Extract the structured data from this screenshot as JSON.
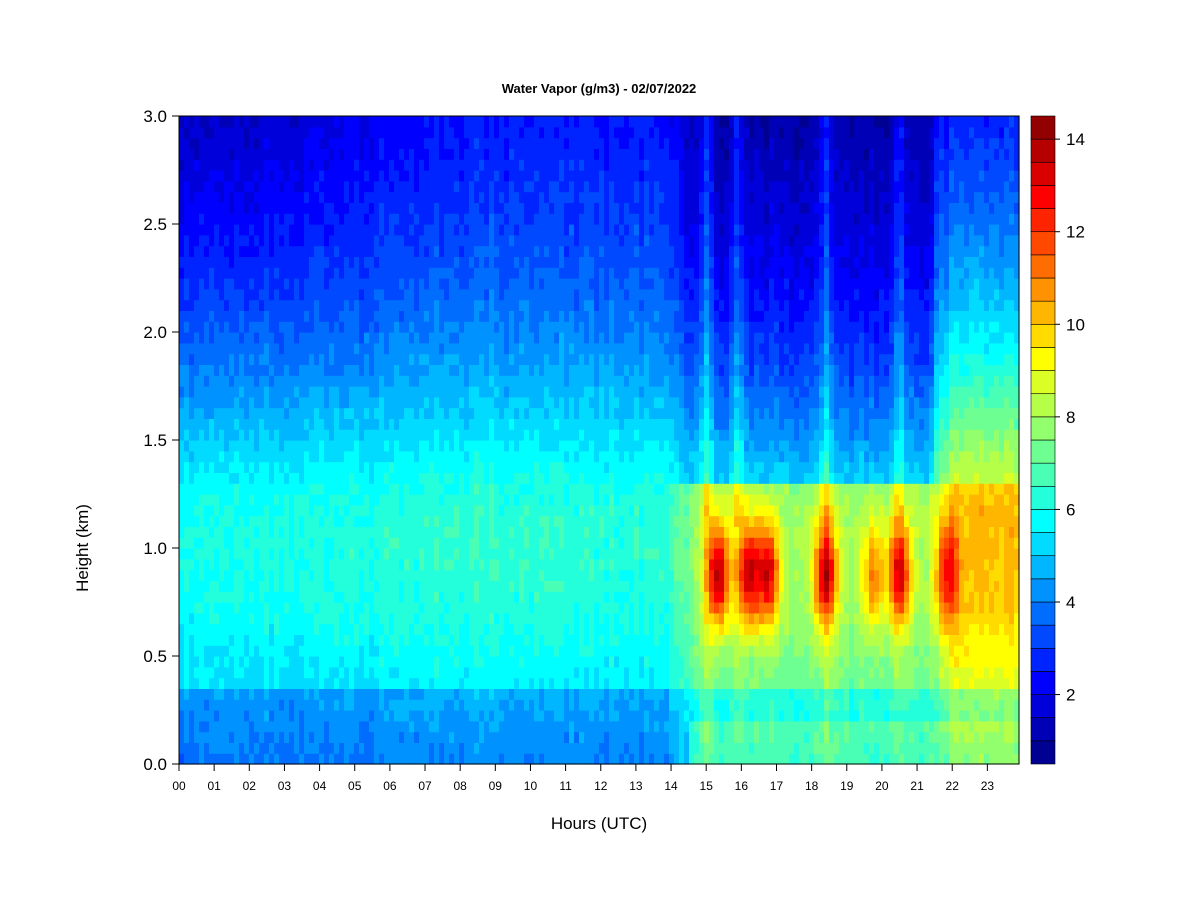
{
  "chart_data": {
    "type": "heatmap",
    "title": "Water Vapor (g/m3) - 02/07/2022",
    "xlabel": "Hours (UTC)",
    "ylabel": "Height (km)",
    "x_ticks": [
      "00",
      "01",
      "02",
      "03",
      "04",
      "05",
      "06",
      "07",
      "08",
      "09",
      "10",
      "11",
      "12",
      "13",
      "14",
      "15",
      "16",
      "17",
      "18",
      "19",
      "20",
      "21",
      "22",
      "23"
    ],
    "xlim": [
      0,
      23.9
    ],
    "y_ticks": [
      "0.0",
      "0.5",
      "1.0",
      "1.5",
      "2.0",
      "2.5",
      "3.0"
    ],
    "ylim": [
      0,
      3.0
    ],
    "colorbar": {
      "range": [
        0.5,
        14.5
      ],
      "ticks": [
        "2",
        "4",
        "6",
        "8",
        "10",
        "12",
        "14"
      ],
      "levels": 28,
      "colormap": "jet"
    },
    "features": {
      "moist_layer_height_km": 0.88,
      "moist_maxima": [
        {
          "hour": 15.35,
          "value": 13.5
        },
        {
          "hour": 16.2,
          "value": 13
        },
        {
          "hour": 16.75,
          "value": 12.8
        },
        {
          "hour": 18.4,
          "value": 13
        },
        {
          "hour": 19.75,
          "value": 10.5
        },
        {
          "hour": 20.5,
          "value": 12.5
        },
        {
          "hour": 21.85,
          "value": 11
        }
      ]
    }
  }
}
